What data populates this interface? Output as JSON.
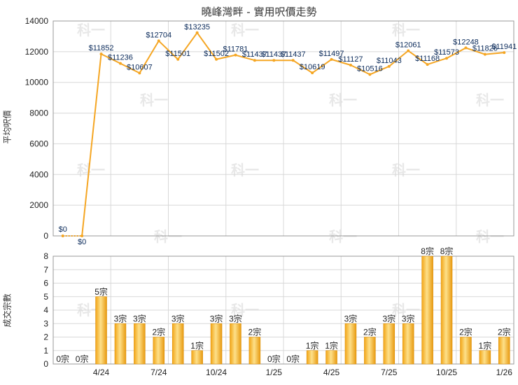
{
  "title": "曉峰灣畔 - 實用呎價走勢",
  "chart_data": [
    {
      "type": "line",
      "ylabel": "平均呎價",
      "ylim": [
        0,
        14000
      ],
      "yticks": [
        0,
        2000,
        4000,
        6000,
        8000,
        10000,
        12000,
        14000
      ],
      "grid": true,
      "color": "#f5a623",
      "values": [
        0,
        0,
        11852,
        11236,
        10607,
        12704,
        11501,
        13235,
        11502,
        11781,
        11437,
        11437,
        11437,
        10619,
        11497,
        11127,
        10516,
        11043,
        12061,
        11168,
        11573,
        12248,
        11826,
        11941
      ],
      "labels": [
        "$0",
        "$0",
        "$11852",
        "$11236",
        "$10607",
        "$12704",
        "$11501",
        "$13235",
        "$11502",
        "$11781",
        "$11437",
        "$11437",
        "$11437",
        "$10619",
        "$11497",
        "$11127",
        "$10516",
        "$11043",
        "$12061",
        "$11168",
        "$11573",
        "$12248",
        "$11826",
        "$11941"
      ]
    },
    {
      "type": "bar",
      "ylabel": "成交宗數",
      "ylim": [
        0,
        8
      ],
      "yticks": [
        0,
        1,
        2,
        3,
        4,
        5,
        6,
        7,
        8
      ],
      "grid": true,
      "color": "#f5a623",
      "values": [
        0,
        0,
        5,
        3,
        3,
        2,
        3,
        1,
        3,
        3,
        2,
        0,
        0,
        1,
        1,
        3,
        2,
        3,
        3,
        8,
        8,
        2,
        1,
        2
      ],
      "labels": [
        "0宗",
        "0宗",
        "5宗",
        "3宗",
        "3宗",
        "2宗",
        "3宗",
        "1宗",
        "3宗",
        "3宗",
        "2宗",
        "0宗",
        "0宗",
        "1宗",
        "1宗",
        "3宗",
        "2宗",
        "3宗",
        "3宗",
        "8宗",
        "8宗",
        "2宗",
        "1宗",
        "2宗"
      ],
      "xticks": [
        {
          "index": 2,
          "label": "4/24"
        },
        {
          "index": 5,
          "label": "7/24"
        },
        {
          "index": 8,
          "label": "10/24"
        },
        {
          "index": 11,
          "label": "1/25"
        },
        {
          "index": 14,
          "label": "4/25"
        },
        {
          "index": 17,
          "label": "7/25"
        },
        {
          "index": 20,
          "label": "10/25"
        },
        {
          "index": 23,
          "label": "1/26"
        }
      ]
    }
  ],
  "watermark": "科一"
}
